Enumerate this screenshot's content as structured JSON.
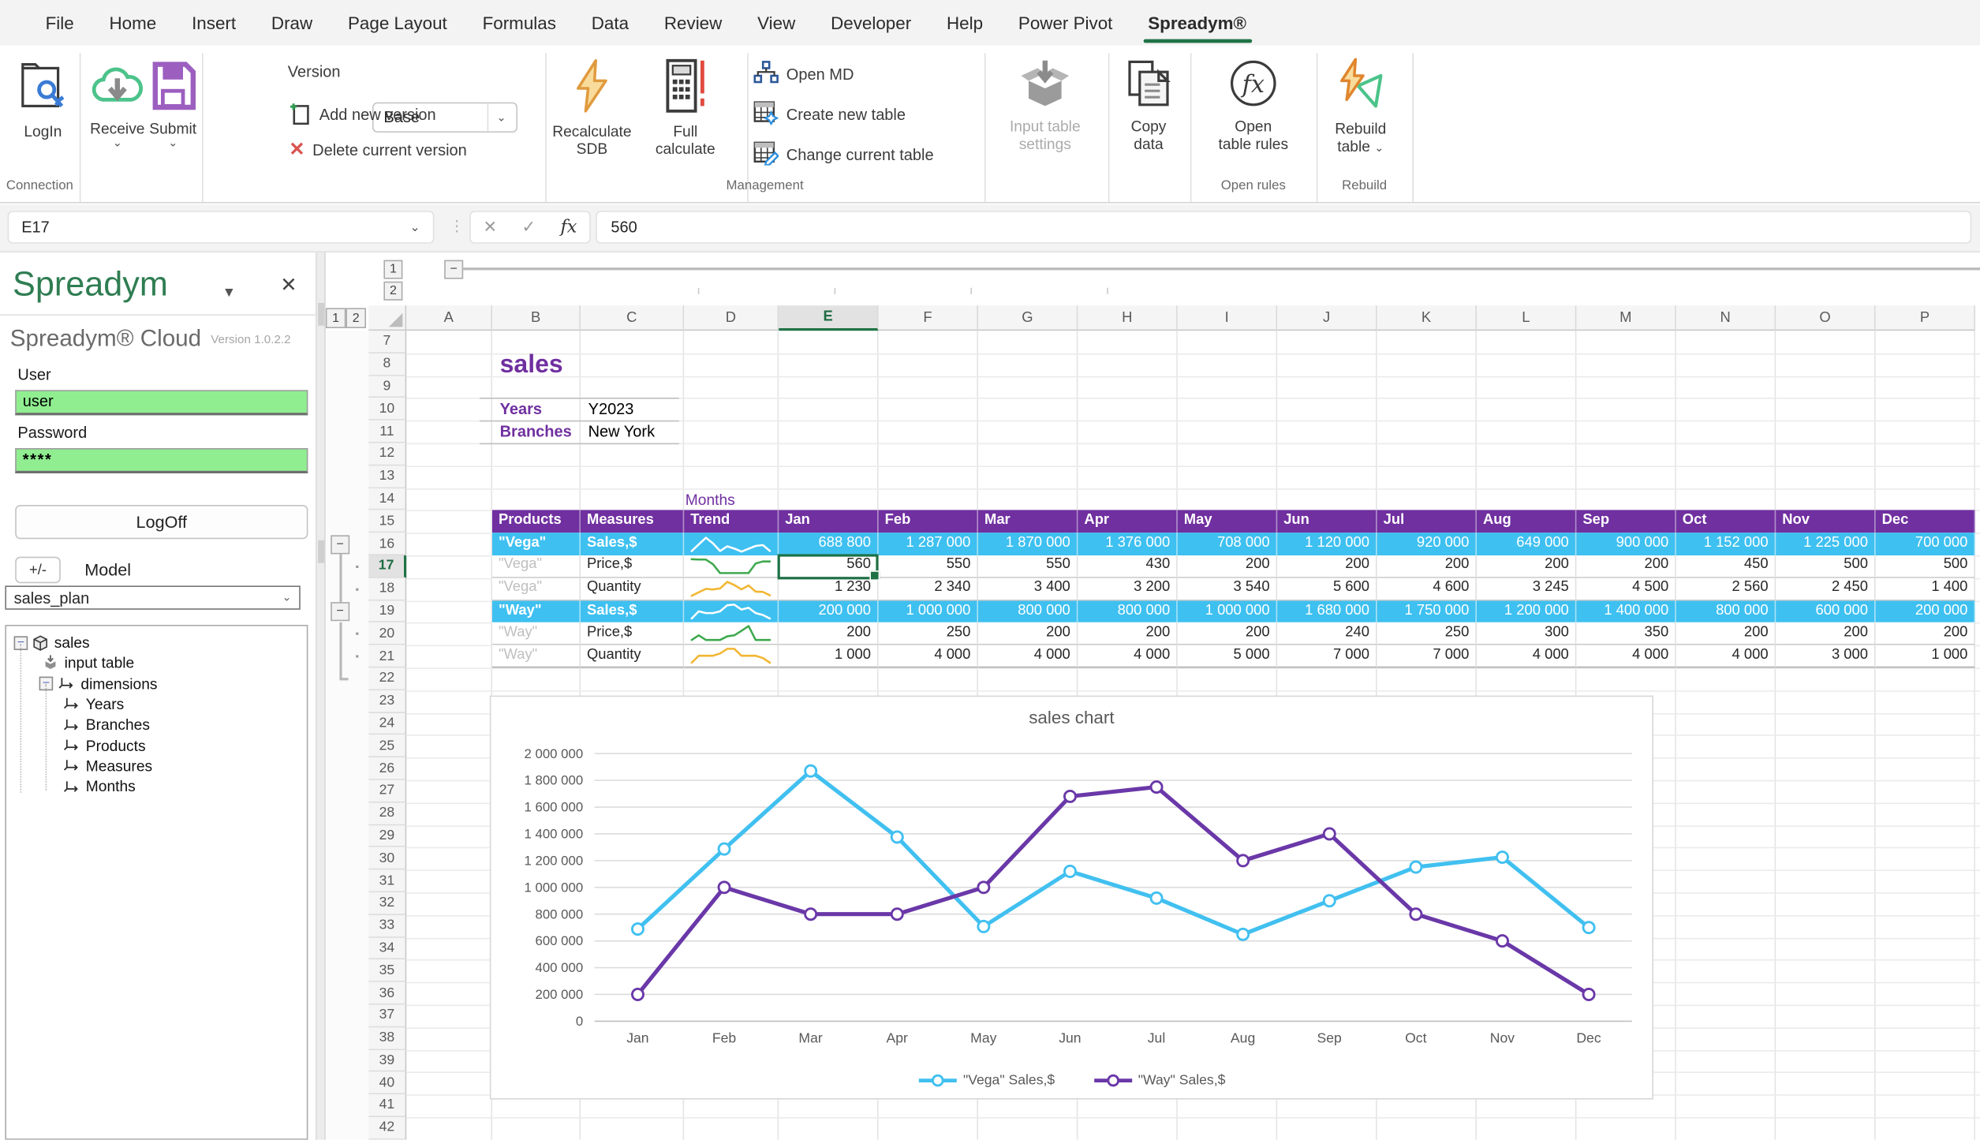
{
  "menu": {
    "tabs": [
      "File",
      "Home",
      "Insert",
      "Draw",
      "Page Layout",
      "Formulas",
      "Data",
      "Review",
      "View",
      "Developer",
      "Help",
      "Power Pivot",
      "Spreadym®"
    ],
    "active_tab": "Spreadym®"
  },
  "ribbon": {
    "login": "LogIn",
    "receive": "Receive",
    "submit": "Submit",
    "version_label": "Version",
    "version_value": "Base",
    "add_new_version": "Add new version",
    "delete_current_version": "Delete current version",
    "recalculate_line1": "Recalculate",
    "recalculate_line2": "SDB",
    "full_line1": "Full",
    "full_line2": "calculate",
    "open_md": "Open MD",
    "create_new_table": "Create new table",
    "change_current_table": "Change current table",
    "input_table_line1": "Input table",
    "input_table_line2": "settings",
    "copy_line1": "Copy",
    "copy_line2": "data",
    "open_rules_line1": "Open",
    "open_rules_line2": "table rules",
    "rebuild_line1": "Rebuild",
    "rebuild_line2": "table",
    "group_connection": "Connection",
    "group_management": "Management",
    "group_open_rules": "Open rules",
    "group_rebuild": "Rebuild"
  },
  "formula_bar": {
    "name_box": "E17",
    "value": "560"
  },
  "sidebar": {
    "title": "Spreadym",
    "product": "Spreadym® Cloud",
    "version": "Version 1.0.2.2",
    "user_label": "User",
    "user_value": "user",
    "password_label": "Password",
    "password_value": "****",
    "logoff": "LogOff",
    "plusminus": "+/-",
    "model_label": "Model",
    "model_value": "sales_plan",
    "tree": [
      {
        "label": "sales",
        "icon": "cube-icon",
        "minus": true,
        "indent": 0
      },
      {
        "label": "input table",
        "icon": "box-icon",
        "minus": false,
        "indent": 1
      },
      {
        "label": "dimensions",
        "icon": "axis-icon",
        "minus": true,
        "indent": 1
      },
      {
        "label": "Years",
        "icon": "axis-icon",
        "minus": false,
        "indent": 2
      },
      {
        "label": "Branches",
        "icon": "axis-icon",
        "minus": false,
        "indent": 2
      },
      {
        "label": "Products",
        "icon": "axis-icon",
        "minus": false,
        "indent": 2
      },
      {
        "label": "Measures",
        "icon": "axis-icon",
        "minus": false,
        "indent": 2
      },
      {
        "label": "Months",
        "icon": "axis-icon",
        "minus": false,
        "indent": 2
      }
    ]
  },
  "grid": {
    "columns": [
      "A",
      "B",
      "C",
      "D",
      "E",
      "F",
      "G",
      "H",
      "I",
      "J",
      "K",
      "L",
      "M",
      "N",
      "O",
      "P"
    ],
    "selected_column": "E",
    "row_start": 7,
    "row_end": 42,
    "selected_row": 17,
    "col_outline_levels": [
      "1",
      "2"
    ],
    "row_outline_levels": [
      "1",
      "2"
    ]
  },
  "sheet": {
    "title": "sales",
    "filters": [
      {
        "label": "Years",
        "value": "Y2023"
      },
      {
        "label": "Branches",
        "value": "New York"
      }
    ],
    "months_label": "Months",
    "table": {
      "headers": [
        "Products",
        "Measures",
        "Trend"
      ],
      "months": [
        "Jan",
        "Feb",
        "Mar",
        "Apr",
        "May",
        "Jun",
        "Jul",
        "Aug",
        "Sep",
        "Oct",
        "Nov",
        "Dec"
      ],
      "rows": [
        {
          "product": "\"Vega\"",
          "measure": "Sales,$",
          "kind": "sales",
          "values": [
            688800,
            1287000,
            1870000,
            1376000,
            708000,
            1120000,
            920000,
            649000,
            900000,
            1152000,
            1225000,
            700000
          ]
        },
        {
          "product": "\"Vega\"",
          "measure": "Price,$",
          "kind": "price",
          "values": [
            560,
            550,
            550,
            430,
            200,
            200,
            200,
            200,
            200,
            450,
            500,
            500
          ]
        },
        {
          "product": "\"Vega\"",
          "measure": "Quantity",
          "kind": "quantity",
          "values": [
            1230,
            2340,
            3400,
            3200,
            3540,
            5600,
            4600,
            3245,
            4500,
            2560,
            2450,
            1400
          ]
        },
        {
          "product": "\"Way\"",
          "measure": "Sales,$",
          "kind": "sales",
          "values": [
            200000,
            1000000,
            800000,
            800000,
            1000000,
            1680000,
            1750000,
            1200000,
            1400000,
            800000,
            600000,
            200000
          ]
        },
        {
          "product": "\"Way\"",
          "measure": "Price,$",
          "kind": "price",
          "values": [
            200,
            250,
            200,
            200,
            200,
            240,
            250,
            300,
            350,
            200,
            200,
            200
          ]
        },
        {
          "product": "\"Way\"",
          "measure": "Quantity",
          "kind": "quantity",
          "values": [
            1000,
            4000,
            4000,
            4000,
            5000,
            7000,
            7000,
            4000,
            4000,
            4000,
            3000,
            1000
          ]
        }
      ]
    },
    "selected_cell": {
      "ref": "E17",
      "value": "560"
    }
  },
  "chart_data": {
    "type": "line",
    "title": "sales chart",
    "categories": [
      "Jan",
      "Feb",
      "Mar",
      "Apr",
      "May",
      "Jun",
      "Jul",
      "Aug",
      "Sep",
      "Oct",
      "Nov",
      "Dec"
    ],
    "series": [
      {
        "name": "\"Vega\" Sales,$",
        "color": "#41C0F0",
        "values": [
          688800,
          1287000,
          1870000,
          1376000,
          708000,
          1120000,
          920000,
          649000,
          900000,
          1152000,
          1225000,
          700000
        ]
      },
      {
        "name": "\"Way\" Sales,$",
        "color": "#6A38A8",
        "values": [
          200000,
          1000000,
          800000,
          800000,
          1000000,
          1680000,
          1750000,
          1200000,
          1400000,
          800000,
          600000,
          200000
        ]
      }
    ],
    "ylim": [
      0,
      2000000
    ],
    "ytick": 200000,
    "grid": true,
    "legend_position": "bottom"
  },
  "colors": {
    "accent_purple": "#7030A0",
    "cyan_row": "#3EC0F0",
    "selection_green": "#1e7145",
    "tab_underline_green": "#217346",
    "sidebar_input_green": "#90EE90",
    "spark_sales": "#FFFFFF",
    "spark_price": "#3EA94E",
    "spark_quantity": "#F2B632"
  }
}
